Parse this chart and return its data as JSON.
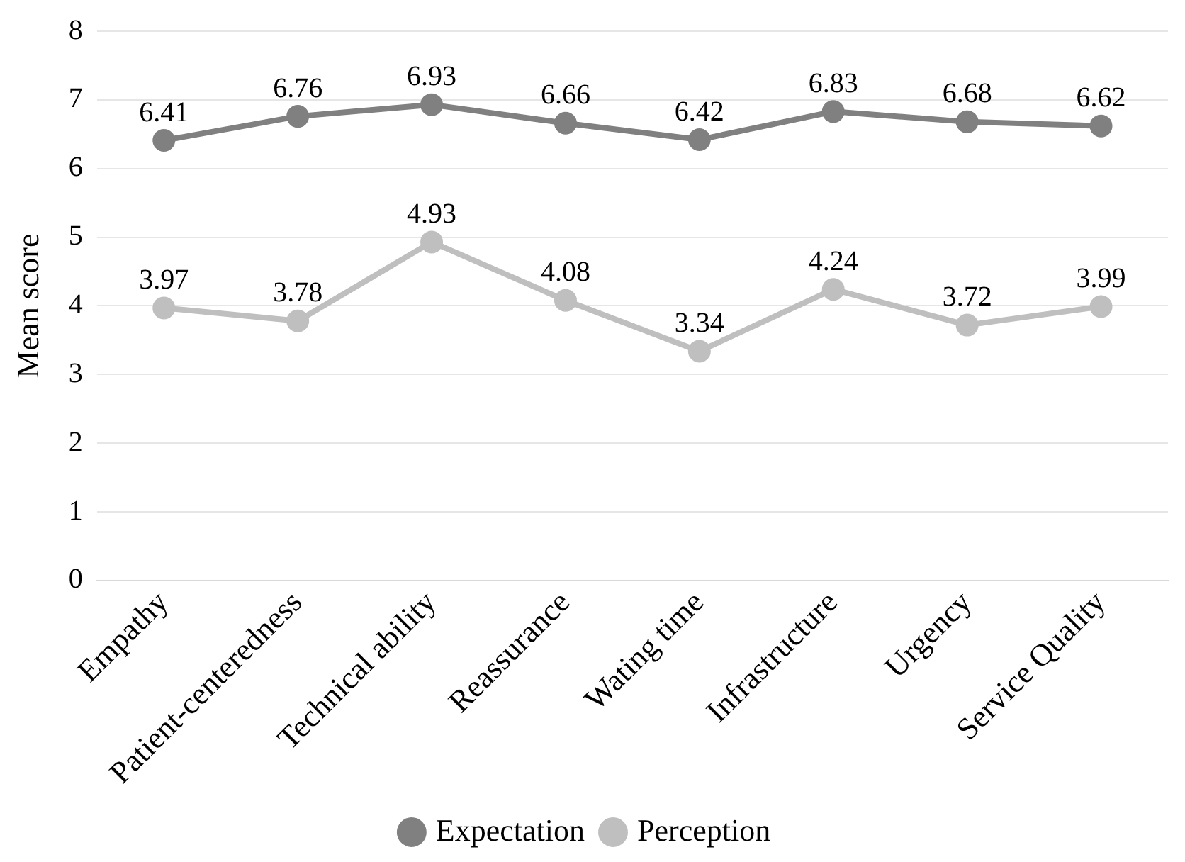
{
  "chart_data": {
    "type": "line",
    "ylabel": "Mean score",
    "categories": [
      "Empathy",
      "Patient-centeredness",
      "Technical ability",
      "Reassurance",
      "Wating time",
      "Infrastructure",
      "Urgency",
      "Service Quality"
    ],
    "series": [
      {
        "name": "Expectation",
        "color": "#808080",
        "values": [
          6.41,
          6.76,
          6.93,
          6.66,
          6.42,
          6.83,
          6.68,
          6.62
        ]
      },
      {
        "name": "Perception",
        "color": "#bfbfbf",
        "values": [
          3.97,
          3.78,
          4.93,
          4.08,
          3.34,
          4.24,
          3.72,
          3.99
        ]
      }
    ],
    "ylim": [
      0,
      8
    ],
    "yticks": [
      0,
      1,
      2,
      3,
      4,
      5,
      6,
      7,
      8
    ],
    "grid": "y",
    "legend": "bottom",
    "marker": "circle",
    "line_style": "solid",
    "data_labels": true
  }
}
